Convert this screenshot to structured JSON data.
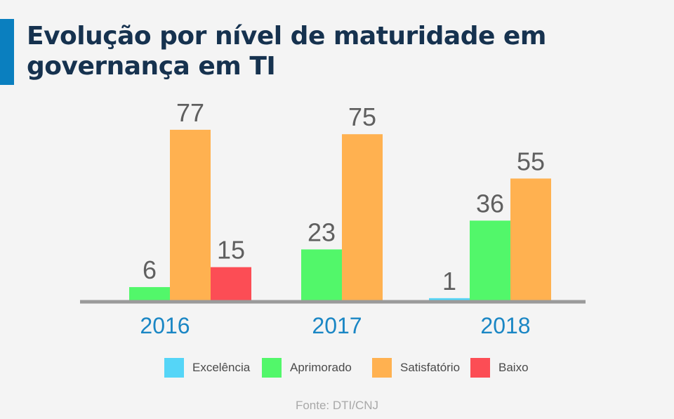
{
  "header": {
    "title": "Evolução por nível de maturidade em governança em TI"
  },
  "chart_data": {
    "type": "bar",
    "title": "Evolução por nível de maturidade em governança em TI",
    "categories": [
      "2016",
      "2017",
      "2018"
    ],
    "series": [
      {
        "name": "Excelência",
        "color": "#55d5f7",
        "values": [
          null,
          null,
          1
        ]
      },
      {
        "name": "Aprimorado",
        "color": "#52f76a",
        "values": [
          6,
          23,
          36
        ]
      },
      {
        "name": "Satisfatório",
        "color": "#ffb150",
        "values": [
          77,
          75,
          55
        ]
      },
      {
        "name": "Baixo",
        "color": "#fc4d55",
        "values": [
          15,
          null,
          null
        ]
      }
    ],
    "ylim": [
      0,
      77
    ],
    "grid": false,
    "legend_position": "bottom",
    "axis_color": "#9a9a9a",
    "value_label_color": "#5f5f5f",
    "category_label_color": "#1a86c4"
  },
  "footer": {
    "source": "Fonte: DTI/CNJ"
  }
}
